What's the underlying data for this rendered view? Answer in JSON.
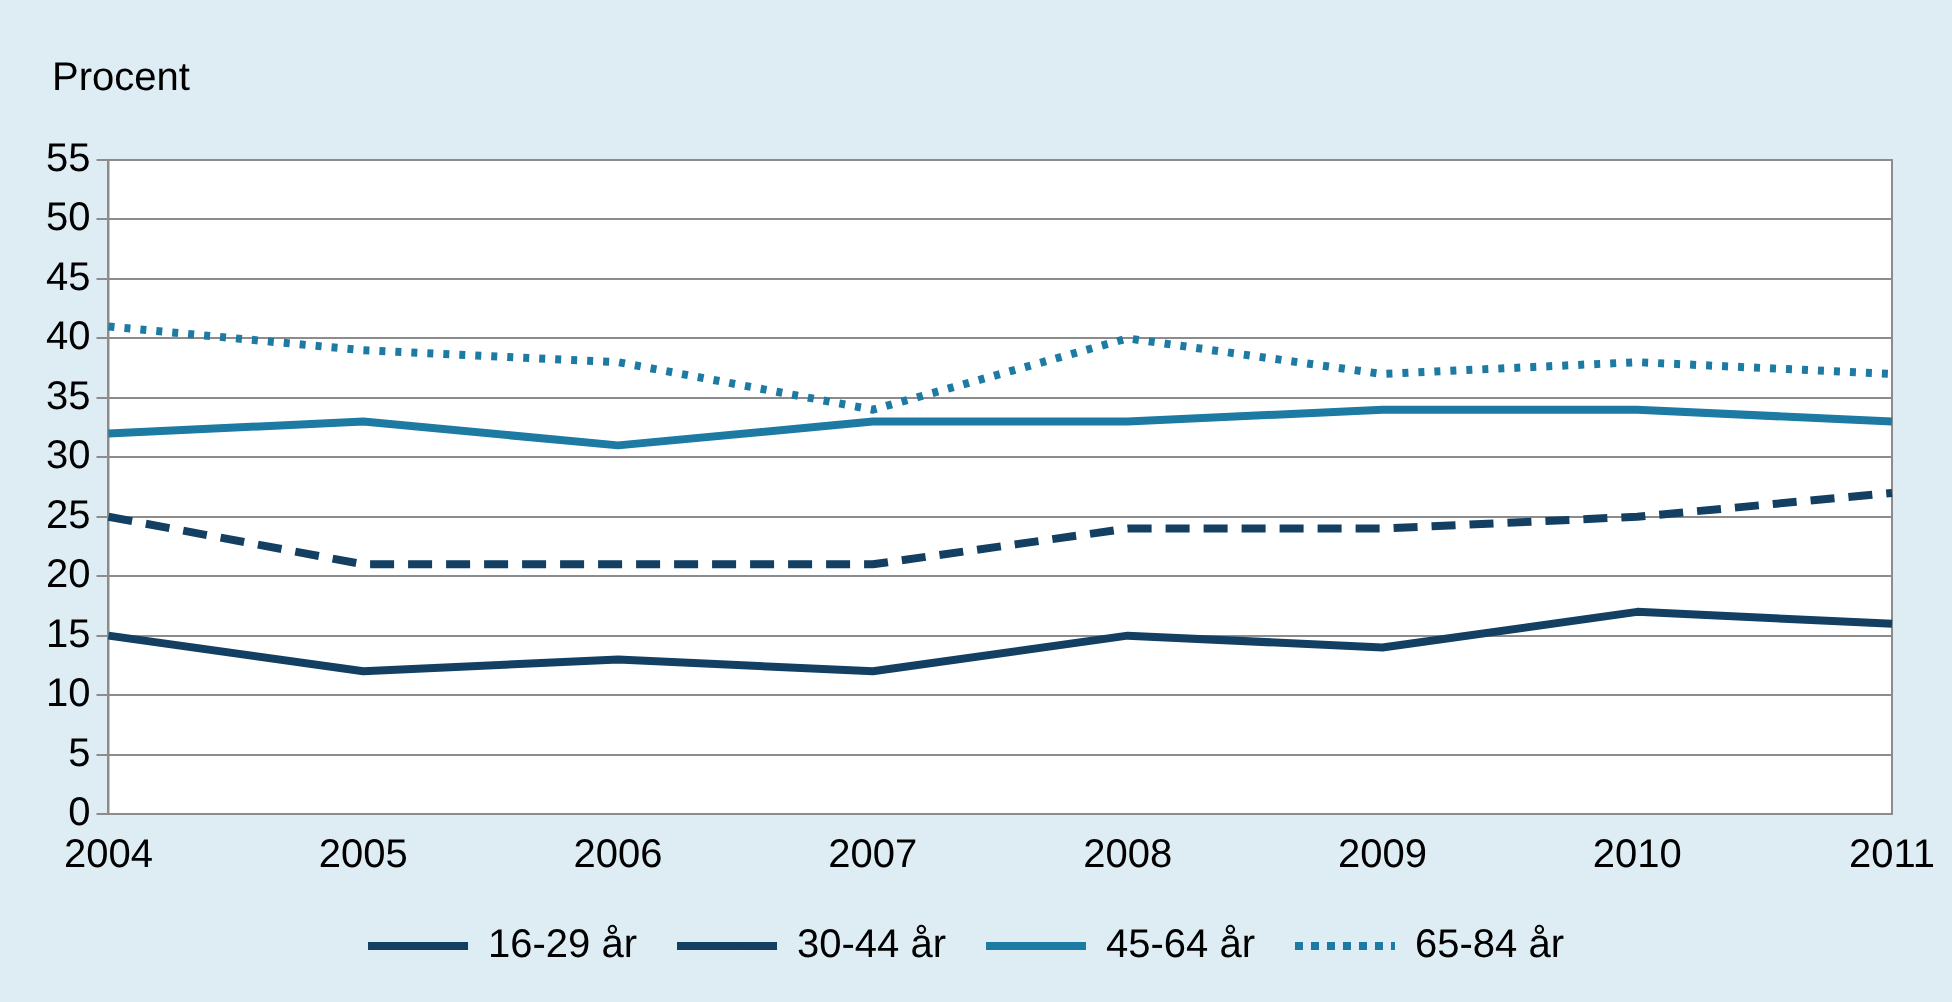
{
  "chart_data": {
    "type": "line",
    "ylabel": "Procent",
    "categories": [
      "2004",
      "2005",
      "2006",
      "2007",
      "2008",
      "2009",
      "2010",
      "2011"
    ],
    "series": [
      {
        "name": "16-29 år",
        "color": "#123f62",
        "line_style": "solid",
        "values": [
          15,
          12,
          13,
          12,
          15,
          14,
          17,
          16
        ]
      },
      {
        "name": "30-44 år",
        "color": "#123f62",
        "line_style": "dashed",
        "values": [
          25,
          21,
          21,
          21,
          24,
          24,
          25,
          27
        ]
      },
      {
        "name": "45-64 år",
        "color": "#1c7aa3",
        "line_style": "solid",
        "values": [
          32,
          33,
          31,
          33,
          33,
          34,
          34,
          33
        ]
      },
      {
        "name": "65-84 år",
        "color": "#1c7aa3",
        "line_style": "dotted",
        "values": [
          41,
          39,
          38,
          34,
          40,
          37,
          38,
          37
        ]
      }
    ],
    "ylim": [
      0,
      55
    ],
    "yticks": [
      0,
      5,
      10,
      15,
      20,
      25,
      30,
      35,
      40,
      45,
      50,
      55
    ],
    "grid": "y",
    "legend": "bottom",
    "marker": "none"
  }
}
